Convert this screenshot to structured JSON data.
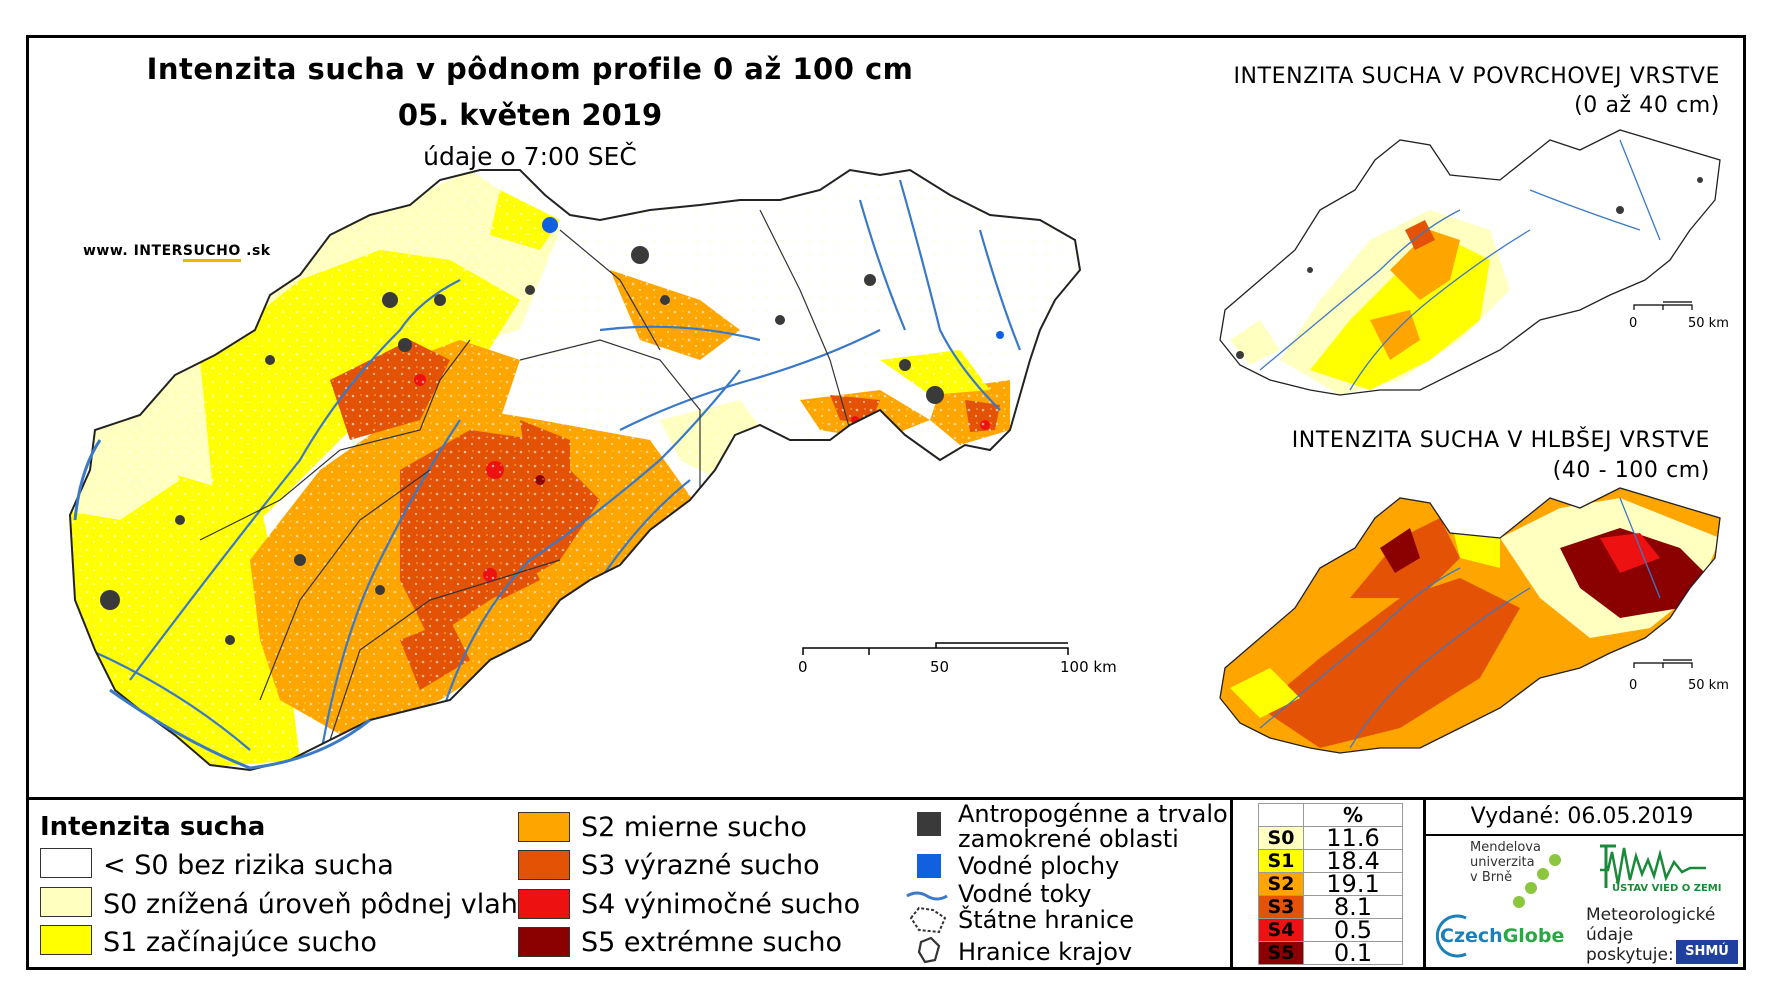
{
  "title": "Intenzita sucha v pôdnom profile 0 až 100 cm",
  "date": "05. květen 2019",
  "time_note": "údaje o 7:00 SEČ",
  "website": {
    "prefix": "www. INTER",
    "accent": "SUCHO",
    "suffix": " .sk"
  },
  "main_scale": {
    "labels": [
      "0",
      "50",
      "100 km"
    ]
  },
  "inset_top": {
    "title_line1": "INTENZITA SUCHA V POVRCHOVEJ VRSTVE",
    "title_line2": "(0 až 40 cm)",
    "scale_labels": [
      "0",
      "50 km"
    ]
  },
  "inset_bottom": {
    "title_line1": "INTENZITA SUCHA V HLBŠEJ VRSTVE",
    "title_line2": "(40 - 100 cm)",
    "scale_labels": [
      "0",
      "50 km"
    ]
  },
  "legend": {
    "title": "Intenzita sucha",
    "classes": [
      {
        "label": "< S0 bez rizika sucha",
        "color": "#ffffff"
      },
      {
        "label": "S0 znížená úroveň pôdnej vlahy",
        "color": "#ffffc0"
      },
      {
        "label": "S1 začínajúce sucho",
        "color": "#ffff00"
      },
      {
        "label": "S2 mierne sucho",
        "color": "#ffa500"
      },
      {
        "label": "S3 výrazné sucho",
        "color": "#e35205"
      },
      {
        "label": "S4 výnimočné sucho",
        "color": "#ee1111"
      },
      {
        "label": "S5 extrémne sucho",
        "color": "#8b0000"
      }
    ],
    "symbols": {
      "anthropogenic_line1": "Antropogénne a trvalo",
      "anthropogenic_line2": "zamokrené oblasti",
      "water_bodies": "Vodné plochy",
      "rivers": "Vodné toky",
      "state_border": "Štátne hranice",
      "regional_border": "Hranice krajov"
    }
  },
  "percentages": {
    "header": "%",
    "rows": [
      {
        "code": "S0",
        "value": "11.6",
        "color": "#ffffc0"
      },
      {
        "code": "S1",
        "value": "18.4",
        "color": "#ffff00"
      },
      {
        "code": "S2",
        "value": "19.1",
        "color": "#ffa500"
      },
      {
        "code": "S3",
        "value": "8.1",
        "color": "#e35205"
      },
      {
        "code": "S4",
        "value": "0.5",
        "color": "#ee1111"
      },
      {
        "code": "S5",
        "value": "0.1",
        "color": "#8b0000"
      }
    ]
  },
  "issued": "Vydané: 06.05.2019",
  "logos": {
    "mendel_line1": "Mendelova",
    "mendel_line2": "univerzita",
    "mendel_line3": "v Brně",
    "czechglobe_a": "Czech",
    "czechglobe_b": "Globe",
    "ustav": "ÚSTAV VIED O ZEMI",
    "meteo_line1": "Meteorologické",
    "meteo_line2": "údaje",
    "meteo_line3": "poskytuje:",
    "shmu": "SHMÚ"
  },
  "colors": {
    "river": "#3a78c8",
    "water": "#1060e0",
    "urban": "#3a3a3a",
    "border": "#333333"
  }
}
